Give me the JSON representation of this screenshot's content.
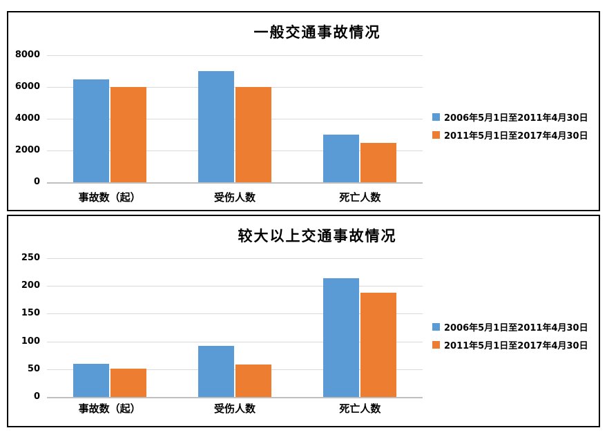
{
  "colors": {
    "series1_blue": "#5B9BD5",
    "series2_orange": "#ED7D31",
    "gridline": "#D9D9D9",
    "axis_line": "#BFBFBF",
    "panel_border": "#000000",
    "text": "#000000",
    "background": "#FFFFFF"
  },
  "chart_data": [
    {
      "type": "bar",
      "title": "一般交通事故情况",
      "categories": [
        "事故数（起）",
        "受伤人数",
        "死亡人数"
      ],
      "series": [
        {
          "name": "2006年5月1日至2011年4月30日",
          "color": "#5B9BD5",
          "values": [
            6500,
            7000,
            3000
          ]
        },
        {
          "name": "2011年5月1日至2017年4月30日",
          "color": "#ED7D31",
          "values": [
            6000,
            6000,
            2500
          ]
        }
      ],
      "xlabel": "",
      "ylabel": "",
      "ylim": [
        0,
        8000
      ],
      "yticks": [
        0,
        2000,
        4000,
        6000,
        8000
      ],
      "grid": true,
      "legend_position": "right"
    },
    {
      "type": "bar",
      "title": "较大以上交通事故情况",
      "categories": [
        "事故数（起）",
        "受伤人数",
        "死亡人数"
      ],
      "series": [
        {
          "name": "2006年5月1日至2011年4月30日",
          "color": "#5B9BD5",
          "values": [
            60,
            92,
            214
          ]
        },
        {
          "name": "2011年5月1日至2017年4月30日",
          "color": "#ED7D31",
          "values": [
            51,
            58,
            188
          ]
        }
      ],
      "xlabel": "",
      "ylabel": "",
      "ylim": [
        0,
        250
      ],
      "yticks": [
        0,
        50,
        100,
        150,
        200,
        250
      ],
      "grid": true,
      "legend_position": "right"
    }
  ]
}
